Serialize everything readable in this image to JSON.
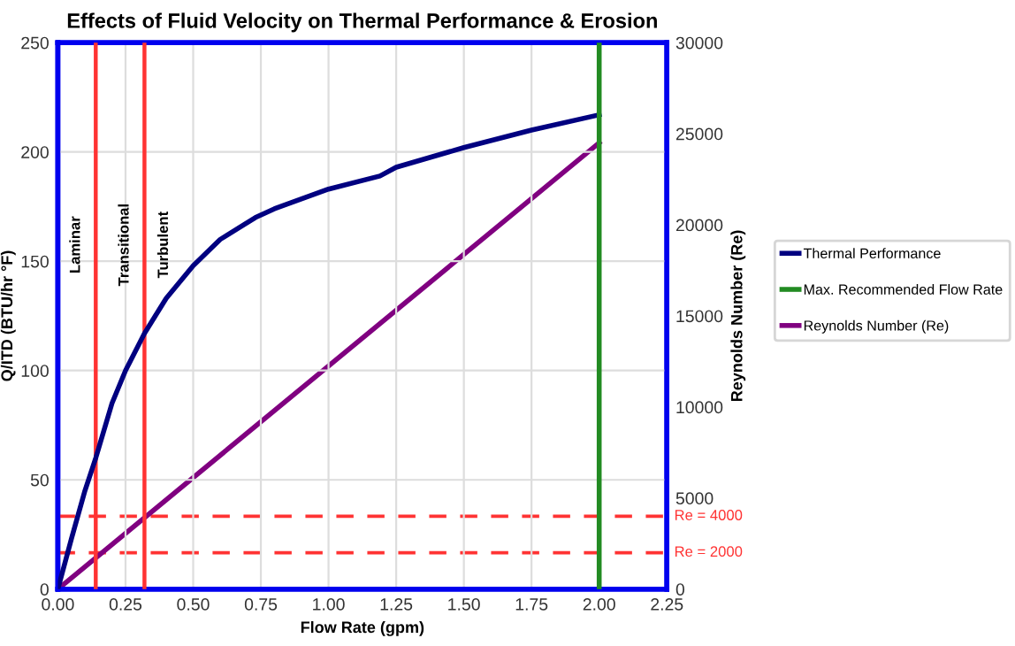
{
  "chart_data": {
    "type": "line",
    "title": "Effects of Fluid Velocity on Thermal Performance & Erosion",
    "xlabel": "Flow Rate (gpm)",
    "ylabel": "Q/ITD (BTU/hr °F)",
    "y2label": "Reynolds Number (Re)",
    "series": [
      {
        "name": "Thermal Performance",
        "color": "#000080",
        "x": [
          0,
          0.05,
          0.1,
          0.14,
          0.2,
          0.25,
          0.32,
          0.4,
          0.5,
          0.6,
          0.73,
          0.8,
          1.0,
          1.19,
          1.25,
          1.5,
          1.75,
          2.0
        ],
        "values": [
          0,
          23,
          45,
          60,
          85,
          100,
          117,
          133,
          148,
          160,
          170,
          174,
          183,
          189,
          193,
          202,
          210,
          217
        ]
      },
      {
        "name": "Max. Recommended Flow Rate",
        "color": "#228b22",
        "x": [
          2.0,
          2.0
        ],
        "values": [
          0,
          250
        ]
      },
      {
        "name": "Reynolds Number (Re)",
        "color": "#800080",
        "axis": "y2",
        "x": [
          0,
          2.0
        ],
        "values": [
          0,
          24500
        ]
      }
    ],
    "xlim": [
      0,
      2.25
    ],
    "xticks": [
      {
        "value": 0,
        "label": "0.00"
      },
      {
        "value": 0.25,
        "label": "0.25"
      },
      {
        "value": 0.5,
        "label": "0.50"
      },
      {
        "value": 0.75,
        "label": "0.75"
      },
      {
        "value": 1.0,
        "label": "1.00"
      },
      {
        "value": 1.25,
        "label": "1.25"
      },
      {
        "value": 1.5,
        "label": "1.50"
      },
      {
        "value": 1.75,
        "label": "1.75"
      },
      {
        "value": 2.0,
        "label": "2.00"
      },
      {
        "value": 2.25,
        "label": "2.25"
      }
    ],
    "ylim": [
      0,
      250
    ],
    "yticks": [
      0,
      50,
      100,
      150,
      200,
      250
    ],
    "y2lim": [
      0,
      30000
    ],
    "y2ticks": [
      0,
      5000,
      10000,
      15000,
      20000,
      25000,
      30000
    ],
    "ref_lines": [
      {
        "axis": "x",
        "value": 0.14,
        "color": "#ff3333",
        "line_style": "solid"
      },
      {
        "axis": "x",
        "value": 0.32,
        "color": "#ff3333",
        "line_style": "solid"
      },
      {
        "axis": "y2",
        "value": 4000,
        "label": "Re = 4000",
        "color": "#ff3333",
        "line_style": "dashed"
      },
      {
        "axis": "y2",
        "value": 2000,
        "label": "Re = 2000",
        "color": "#ff3333",
        "line_style": "dashed"
      }
    ],
    "annotations": [
      "Laminar",
      "Transitional",
      "Turbulent"
    ],
    "grid": true,
    "legend": "right",
    "line_style": "solid",
    "marker": "none"
  }
}
